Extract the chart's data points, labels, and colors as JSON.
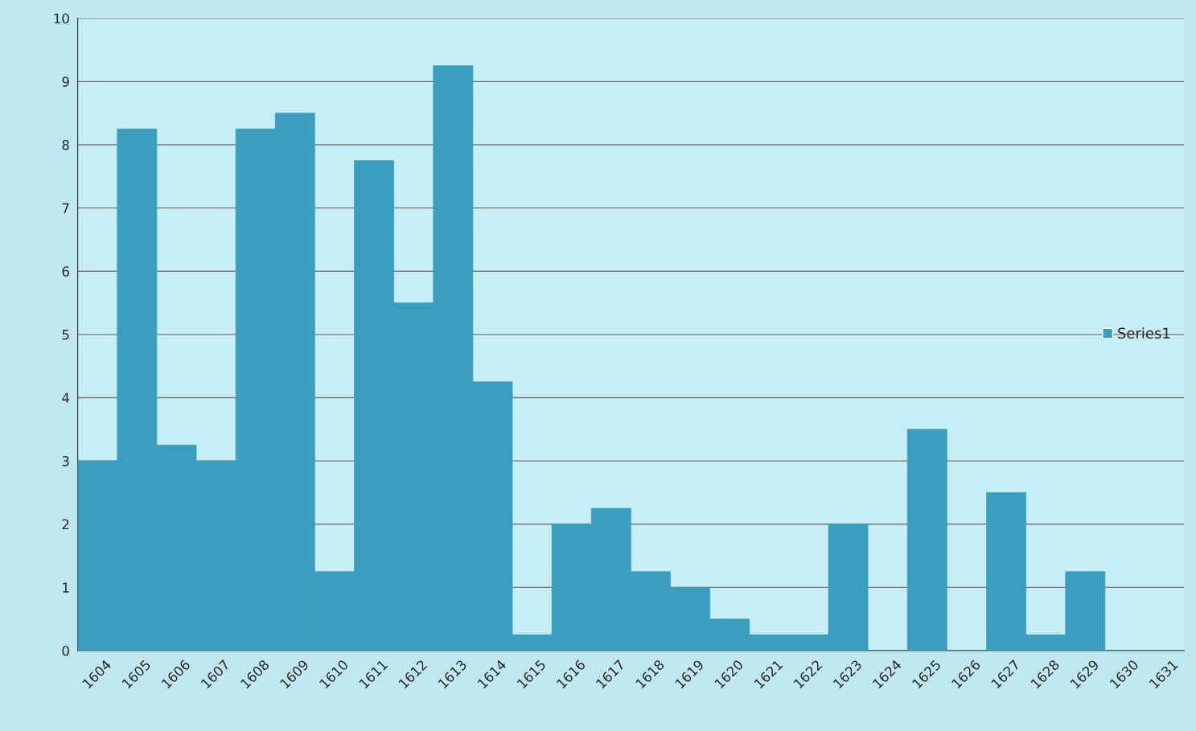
{
  "chart_data": {
    "type": "bar",
    "categories": [
      "1604",
      "1605",
      "1606",
      "1607",
      "1608",
      "1609",
      "1610",
      "1611",
      "1612",
      "1613",
      "1614",
      "1615",
      "1616",
      "1617",
      "1618",
      "1619",
      "1620",
      "1621",
      "1622",
      "1623",
      "1624",
      "1625",
      "1626",
      "1627",
      "1628",
      "1629",
      "1630",
      "1631"
    ],
    "series": [
      {
        "name": "Series1",
        "color": "#3a9fbf",
        "values": [
          3,
          8.25,
          3.25,
          3,
          8.25,
          8.5,
          1.25,
          7.75,
          5.5,
          9.25,
          4.25,
          0.25,
          2,
          2.25,
          1.25,
          1,
          0.5,
          0.25,
          0.25,
          2,
          0,
          3.5,
          0,
          2.5,
          0.25,
          1.25,
          0,
          0
        ]
      }
    ],
    "ylim": [
      0,
      10
    ],
    "yticks": [
      0,
      1,
      2,
      3,
      4,
      5,
      6,
      7,
      8,
      9,
      10
    ],
    "grid": "y",
    "legend": "right"
  }
}
